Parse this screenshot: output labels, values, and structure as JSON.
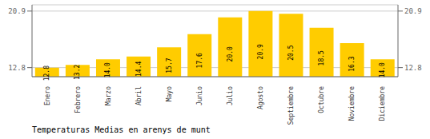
{
  "chart_data": {
    "type": "bar",
    "title": "Temperaturas Medias en arenys de munt",
    "categories": [
      "Enero",
      "Febrero",
      "Marzo",
      "Abril",
      "Mayo",
      "Junio",
      "Julio",
      "Agosto",
      "Septiembre",
      "Octubre",
      "Noviembre",
      "Diciembre"
    ],
    "values": [
      12.8,
      13.2,
      14.0,
      14.4,
      15.7,
      17.6,
      20.0,
      20.9,
      20.5,
      18.5,
      16.3,
      14.0
    ],
    "value_labels": [
      "12.8",
      "13.2",
      "14.0",
      "14.4",
      "15.7",
      "17.6",
      "20.0",
      "20.9",
      "20.5",
      "18.5",
      "16.3",
      "14.0"
    ],
    "data_labels": true,
    "color": "#FFCC00",
    "ylim": [
      11.5,
      21.8
    ],
    "yticks": [
      12.8,
      20.9
    ],
    "y2lim": [
      11.5,
      21.8
    ],
    "y2ticks": [
      12.8,
      20.9
    ],
    "grid": true
  }
}
